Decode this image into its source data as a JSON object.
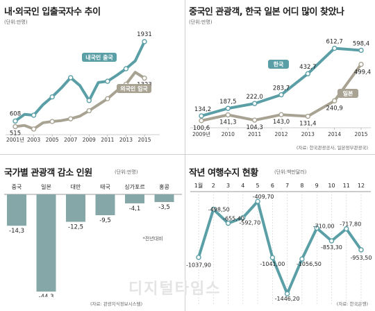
{
  "watermark": "디지털타임스",
  "chart_data": [
    {
      "type": "line",
      "title": "내·외국인 입출국자수 추이",
      "unit": "(단위:만명)",
      "x": [
        "2001년",
        "2003",
        "2005",
        "2007",
        "2009",
        "2011",
        "2013",
        "2015"
      ],
      "ylim": [
        450,
        2000
      ],
      "series": [
        {
          "name": "내국인 출국",
          "color": "#5a9ea6",
          "points": [
            [
              2001,
              608
            ],
            [
              2002,
              720
            ],
            [
              2003,
              705
            ],
            [
              2004,
              880
            ],
            [
              2005,
              1010
            ],
            [
              2006,
              1160
            ],
            [
              2007,
              1330
            ],
            [
              2008,
              1200
            ],
            [
              2009,
              950
            ],
            [
              2010,
              1250
            ],
            [
              2011,
              1270
            ],
            [
              2012,
              1370
            ],
            [
              2013,
              1480
            ],
            [
              2014,
              1610
            ],
            [
              2015,
              1931
            ]
          ],
          "labels": [
            {
              "x": 2001,
              "text": "608"
            },
            {
              "x": 2015,
              "text": "1931"
            }
          ]
        },
        {
          "name": "외국인 입국",
          "color": "#a8a293",
          "points": [
            [
              2001,
              515
            ],
            [
              2002,
              535
            ],
            [
              2003,
              475
            ],
            [
              2004,
              580
            ],
            [
              2005,
              600
            ],
            [
              2006,
              615
            ],
            [
              2007,
              645
            ],
            [
              2008,
              690
            ],
            [
              2009,
              780
            ],
            [
              2010,
              880
            ],
            [
              2011,
              980
            ],
            [
              2012,
              1110
            ],
            [
              2013,
              1220
            ],
            [
              2014,
              1420
            ],
            [
              2015,
              1323
            ]
          ],
          "labels": [
            {
              "x": 2001,
              "text": "515"
            },
            {
              "x": 2015,
              "text": "1323"
            }
          ]
        }
      ]
    },
    {
      "type": "line",
      "title": "중국인 관광객, 한국 일본 어디 많이 찾았나",
      "unit": "(단위:만명)",
      "source": "(자료: 한국관광공사, 일본정부관광국)",
      "x": [
        "2009년",
        "2010",
        "2011",
        "2012",
        "2013",
        "2014",
        "2015"
      ],
      "ylim": [
        80,
        650
      ],
      "series": [
        {
          "name": "한국",
          "color": "#5a9ea6",
          "values": [
            134.2,
            187.5,
            222.0,
            283.7,
            432.7,
            612.7,
            598.4
          ],
          "labels": [
            "134,2",
            "187,5",
            "222,0",
            "283,7",
            "432,7",
            "612,7",
            "598,4"
          ]
        },
        {
          "name": "일본",
          "color": "#a8a293",
          "values": [
            100.6,
            141.3,
            104.3,
            143.0,
            131.4,
            240.9,
            499.4
          ],
          "labels": [
            "100,6",
            "141,3",
            "104,3",
            "143,0",
            "131,4",
            "240,9",
            "499,4"
          ]
        }
      ]
    },
    {
      "type": "bar",
      "title": "국가별 관광객 감소 인원",
      "unit": "(단위:만명)",
      "note": "*전년대비",
      "source": "(자료: 관광지식정보시스템)",
      "categories": [
        "중국",
        "일본",
        "대만",
        "태국",
        "싱가포르",
        "홍콩"
      ],
      "values": [
        -14.3,
        -44.3,
        -12.5,
        -9.5,
        -4.1,
        -3.5
      ],
      "labels": [
        "-14,3",
        "-44,3",
        "-12,5",
        "-9,5",
        "-4,1",
        "-3,5"
      ],
      "color": "#86a7a7"
    },
    {
      "type": "line",
      "title": "작년 여행수지 현황",
      "unit": "(단위:백만달러)",
      "source": "(자료: 한국은행)",
      "x": [
        "1월",
        "2",
        "3",
        "4",
        "5",
        "6",
        "7",
        "8",
        "9",
        "10",
        "11",
        "12"
      ],
      "ylim": [
        -1500,
        -300
      ],
      "series": [
        {
          "name": "",
          "color": "#5a9ea6",
          "values": [
            -1037.9,
            -498.5,
            -655.4,
            -592.7,
            -409.7,
            -1041.0,
            -1446.2,
            -1056.5,
            -710.0,
            -853.3,
            -717.8,
            -953.5
          ],
          "labels": [
            "-1037,90",
            "-498,50",
            "-655,40",
            "-592,70",
            "-409,70",
            "-1041,00",
            "-1446,20",
            "-1056,50",
            "-710,00",
            "-853,30",
            "-717,80",
            "-953,50"
          ]
        }
      ]
    }
  ]
}
